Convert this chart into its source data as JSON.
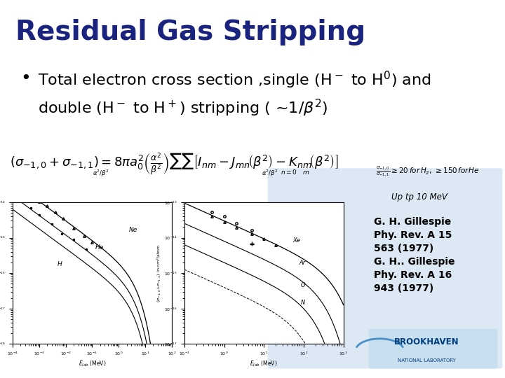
{
  "title": "Residual Gas Stripping",
  "title_color": "#1a237e",
  "title_fontsize": 28,
  "bullet_line1": "Total electron cross section ,single (H$^-$ to H$^0$) and",
  "bullet_line2": "double (H$^-$ to H$^+$) stripping ( ~1/$\\beta^2$)",
  "up_text": "Up tp 10 MeV",
  "ref_text": "G. H. Gillespie\nPhy. Rev. A 15\n563 (1977)\nG. H.. Gillespie\nPhy. Rev. A 16\n943 (1977)",
  "background_color": "#ffffff",
  "panel_bg_color": "#dce9f5",
  "brookhaven_color": "#003f7f",
  "bullet_fontsize": 16,
  "ref_fontsize": 10
}
